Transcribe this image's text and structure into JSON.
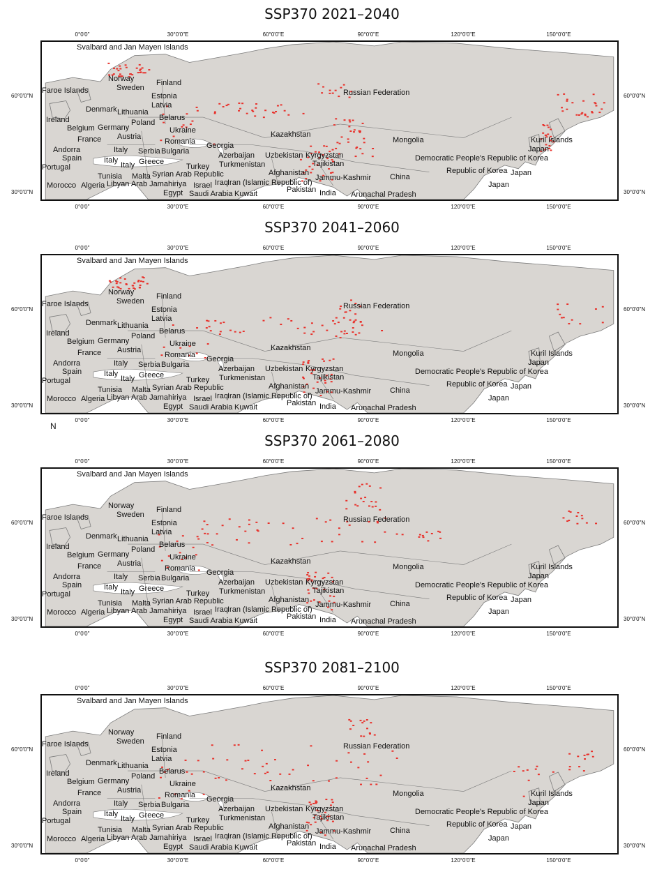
{
  "colors": {
    "land": "#d9d6d2",
    "border": "#7a7a7a",
    "presence": "#e8302a",
    "frame": "#111111"
  },
  "lon_ticks": [
    "0°0'0\"",
    "30°0'0\"E",
    "60°0'0\"E",
    "90°0'0\"E",
    "120°0'0\"E",
    "150°0'0\"E"
  ],
  "lat_ticks": [
    "60°0'0\"N",
    "30°0'0\"N"
  ],
  "place_labels": [
    "Svalbard and Jan Mayen Islands",
    "Russian Federation",
    "Faroe Islands",
    "Norway",
    "Sweden",
    "Finland",
    "Estonia",
    "Latvia",
    "Denmark",
    "Lithuania",
    "Ireland",
    "Belarus",
    "Poland",
    "Germany",
    "Belgium",
    "Ukraine",
    "France",
    "Austria",
    "Romania",
    "Kazakhstan",
    "Mongolia",
    "Andorra",
    "Italy",
    "Serbia",
    "Bulgaria",
    "Georgia",
    "Spain",
    "Italy",
    "Azerbaijan",
    "Uzbekistan",
    "Kyrgyzstan",
    "Kuril Islands",
    "Japan",
    "Portugal",
    "Italy",
    "Greece",
    "Turkey",
    "Turkmenistan",
    "Tajikistan",
    "Democratic People's Republic of Korea",
    "Afghanistan",
    "Syrian Arab Republic",
    "Tunisia",
    "Malta",
    "Jammu-Kashmir",
    "China",
    "Republic of Korea",
    "Japan",
    "Morocco",
    "Algeria",
    "Libyan Arab Jamahiriya",
    "Israel",
    "Iraq",
    "Iran (Islamic Republic of)",
    "Japan",
    "Pakistan",
    "Egypt",
    "Saudi Arabia",
    "Kuwait",
    "India",
    "Arunachal Pradesh"
  ],
  "panels": [
    {
      "title": "SSP370 2021–2040",
      "stray_text": ""
    },
    {
      "title": "SSP370 2041–2060",
      "stray_text": "N"
    },
    {
      "title": "SSP370 2061–2080",
      "stray_text": ""
    },
    {
      "title": "SSP370 2081–2100",
      "stray_text": ""
    }
  ]
}
